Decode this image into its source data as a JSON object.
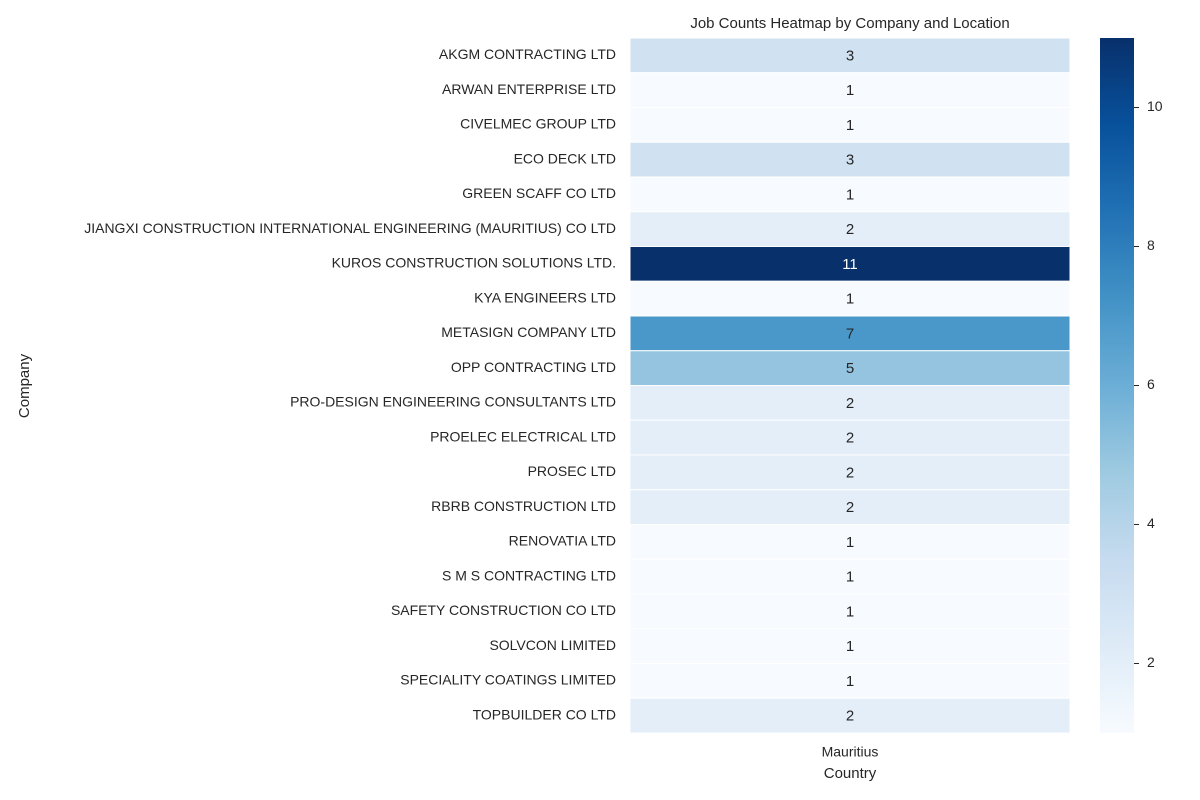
{
  "chart_data": {
    "type": "heatmap",
    "title": "Job Counts Heatmap by Company and Location",
    "xlabel": "Country",
    "ylabel": "Company",
    "x": [
      "Mauritius"
    ],
    "categories": [
      "AKGM CONTRACTING LTD",
      "ARWAN ENTERPRISE LTD",
      "CIVELMEC GROUP LTD",
      "ECO DECK LTD",
      "GREEN SCAFF CO LTD",
      "JIANGXI CONSTRUCTION INTERNATIONAL ENGINEERING (MAURITIUS) CO LTD",
      "KUROS CONSTRUCTION SOLUTIONS LTD.",
      "KYA ENGINEERS LTD",
      "METASIGN COMPANY LTD",
      "OPP CONTRACTING LTD",
      "PRO-DESIGN ENGINEERING CONSULTANTS LTD",
      "PROELEC ELECTRICAL LTD",
      "PROSEC LTD",
      "RBRB CONSTRUCTION LTD",
      "RENOVATIA LTD",
      "S M S CONTRACTING LTD",
      "SAFETY CONSTRUCTION CO LTD",
      "SOLVCON LIMITED",
      "SPECIALITY COATINGS LIMITED",
      "TOPBUILDER CO LTD"
    ],
    "values": [
      [
        3
      ],
      [
        1
      ],
      [
        1
      ],
      [
        3
      ],
      [
        1
      ],
      [
        2
      ],
      [
        11
      ],
      [
        1
      ],
      [
        7
      ],
      [
        5
      ],
      [
        2
      ],
      [
        2
      ],
      [
        2
      ],
      [
        2
      ],
      [
        1
      ],
      [
        1
      ],
      [
        1
      ],
      [
        1
      ],
      [
        1
      ],
      [
        2
      ]
    ],
    "colormap": "Blues",
    "clim": [
      1,
      11
    ],
    "cticks": [
      2,
      4,
      6,
      8,
      10
    ]
  }
}
